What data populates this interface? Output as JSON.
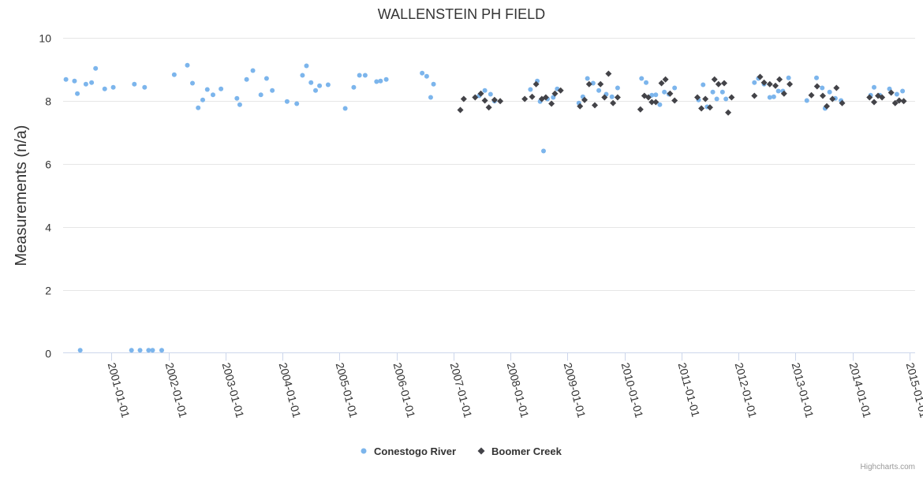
{
  "chart_data": {
    "type": "scatter",
    "title": "WALLENSTEIN PH FIELD",
    "xlabel": "",
    "ylabel": "Measurements (n/a)",
    "xlim": [
      2000.15,
      2015.1
    ],
    "ylim": [
      0,
      10
    ],
    "yticks": [
      0,
      2,
      4,
      6,
      8,
      10
    ],
    "xtick_labels": [
      "2001-01-01",
      "2002-01-01",
      "2003-01-01",
      "2004-01-01",
      "2005-01-01",
      "2006-01-01",
      "2007-01-01",
      "2008-01-01",
      "2009-01-01",
      "2010-01-01",
      "2011-01-01",
      "2012-01-01",
      "2013-01-01",
      "2014-01-01",
      "2015-01-01"
    ],
    "xtick_values": [
      2001,
      2002,
      2003,
      2004,
      2005,
      2006,
      2007,
      2008,
      2009,
      2010,
      2011,
      2012,
      2013,
      2014,
      2015
    ],
    "grid": true,
    "legend_position": "bottom-center",
    "series": [
      {
        "name": "Conestogo River",
        "color": "#7cb5ec",
        "marker": "circle",
        "points": [
          [
            2000.2,
            8.67
          ],
          [
            2000.35,
            8.62
          ],
          [
            2000.4,
            8.22
          ],
          [
            2000.45,
            0.08
          ],
          [
            2000.55,
            8.52
          ],
          [
            2000.65,
            8.57
          ],
          [
            2000.72,
            9.02
          ],
          [
            2000.88,
            8.37
          ],
          [
            2001.03,
            8.42
          ],
          [
            2001.35,
            0.08
          ],
          [
            2001.4,
            8.52
          ],
          [
            2001.5,
            0.08
          ],
          [
            2001.58,
            8.42
          ],
          [
            2001.65,
            0.08
          ],
          [
            2001.72,
            0.08
          ],
          [
            2001.88,
            0.08
          ],
          [
            2002.1,
            8.82
          ],
          [
            2002.33,
            9.12
          ],
          [
            2002.42,
            8.55
          ],
          [
            2002.52,
            7.77
          ],
          [
            2002.6,
            8.02
          ],
          [
            2002.68,
            8.35
          ],
          [
            2002.78,
            8.18
          ],
          [
            2002.92,
            8.37
          ],
          [
            2003.2,
            8.07
          ],
          [
            2003.25,
            7.87
          ],
          [
            2003.37,
            8.67
          ],
          [
            2003.48,
            8.95
          ],
          [
            2003.62,
            8.18
          ],
          [
            2003.72,
            8.7
          ],
          [
            2003.82,
            8.32
          ],
          [
            2004.08,
            7.97
          ],
          [
            2004.25,
            7.9
          ],
          [
            2004.35,
            8.8
          ],
          [
            2004.42,
            9.1
          ],
          [
            2004.5,
            8.57
          ],
          [
            2004.58,
            8.32
          ],
          [
            2004.65,
            8.47
          ],
          [
            2004.8,
            8.5
          ],
          [
            2005.1,
            7.75
          ],
          [
            2005.25,
            8.42
          ],
          [
            2005.35,
            8.8
          ],
          [
            2005.45,
            8.8
          ],
          [
            2005.65,
            8.6
          ],
          [
            2005.72,
            8.62
          ],
          [
            2005.82,
            8.67
          ],
          [
            2006.45,
            8.87
          ],
          [
            2006.53,
            8.77
          ],
          [
            2006.6,
            8.1
          ],
          [
            2006.65,
            8.52
          ],
          [
            2007.45,
            8.15
          ],
          [
            2007.55,
            8.32
          ],
          [
            2007.65,
            8.2
          ],
          [
            2007.72,
            7.98
          ],
          [
            2008.35,
            8.35
          ],
          [
            2008.47,
            8.62
          ],
          [
            2008.52,
            7.97
          ],
          [
            2008.58,
            6.4
          ],
          [
            2008.65,
            8.05
          ],
          [
            2008.75,
            8.1
          ],
          [
            2008.82,
            8.37
          ],
          [
            2009.2,
            7.92
          ],
          [
            2009.27,
            8.12
          ],
          [
            2009.35,
            8.7
          ],
          [
            2009.45,
            8.55
          ],
          [
            2009.55,
            8.32
          ],
          [
            2009.68,
            8.2
          ],
          [
            2009.78,
            8.12
          ],
          [
            2009.88,
            8.4
          ],
          [
            2010.3,
            8.7
          ],
          [
            2010.38,
            8.57
          ],
          [
            2010.48,
            8.17
          ],
          [
            2010.55,
            8.18
          ],
          [
            2010.62,
            7.87
          ],
          [
            2010.7,
            8.27
          ],
          [
            2010.78,
            8.2
          ],
          [
            2010.88,
            8.4
          ],
          [
            2011.3,
            8.02
          ],
          [
            2011.38,
            8.5
          ],
          [
            2011.45,
            7.8
          ],
          [
            2011.55,
            8.27
          ],
          [
            2011.62,
            8.05
          ],
          [
            2011.72,
            8.27
          ],
          [
            2011.78,
            8.05
          ],
          [
            2012.28,
            8.57
          ],
          [
            2012.35,
            8.7
          ],
          [
            2012.45,
            8.52
          ],
          [
            2012.55,
            8.1
          ],
          [
            2012.62,
            8.12
          ],
          [
            2012.7,
            8.3
          ],
          [
            2012.78,
            8.3
          ],
          [
            2012.88,
            8.72
          ],
          [
            2013.2,
            8.0
          ],
          [
            2013.37,
            8.72
          ],
          [
            2013.47,
            8.4
          ],
          [
            2013.52,
            7.75
          ],
          [
            2013.6,
            8.27
          ],
          [
            2013.7,
            8.07
          ],
          [
            2013.8,
            8.0
          ],
          [
            2014.32,
            8.17
          ],
          [
            2014.38,
            8.42
          ],
          [
            2014.48,
            8.17
          ],
          [
            2014.65,
            8.37
          ],
          [
            2014.78,
            8.2
          ],
          [
            2014.88,
            8.3
          ]
        ]
      },
      {
        "name": "Boomer Creek",
        "color": "#434348",
        "marker": "diamond",
        "points": [
          [
            2007.12,
            7.7
          ],
          [
            2007.18,
            8.05
          ],
          [
            2007.38,
            8.1
          ],
          [
            2007.48,
            8.22
          ],
          [
            2007.55,
            8.0
          ],
          [
            2007.62,
            7.78
          ],
          [
            2007.72,
            8.02
          ],
          [
            2007.82,
            7.98
          ],
          [
            2008.25,
            8.05
          ],
          [
            2008.38,
            8.12
          ],
          [
            2008.45,
            8.52
          ],
          [
            2008.55,
            8.05
          ],
          [
            2008.62,
            8.1
          ],
          [
            2008.72,
            7.9
          ],
          [
            2008.78,
            8.22
          ],
          [
            2008.88,
            8.32
          ],
          [
            2009.22,
            7.82
          ],
          [
            2009.3,
            8.02
          ],
          [
            2009.38,
            8.52
          ],
          [
            2009.48,
            7.85
          ],
          [
            2009.58,
            8.52
          ],
          [
            2009.65,
            8.1
          ],
          [
            2009.72,
            8.85
          ],
          [
            2009.8,
            7.92
          ],
          [
            2009.88,
            8.1
          ],
          [
            2010.28,
            7.72
          ],
          [
            2010.35,
            8.15
          ],
          [
            2010.42,
            8.1
          ],
          [
            2010.48,
            7.95
          ],
          [
            2010.55,
            7.95
          ],
          [
            2010.65,
            8.55
          ],
          [
            2010.72,
            8.67
          ],
          [
            2010.8,
            8.22
          ],
          [
            2010.88,
            8.0
          ],
          [
            2011.28,
            8.1
          ],
          [
            2011.35,
            7.75
          ],
          [
            2011.42,
            8.05
          ],
          [
            2011.5,
            7.78
          ],
          [
            2011.58,
            8.67
          ],
          [
            2011.65,
            8.52
          ],
          [
            2011.75,
            8.55
          ],
          [
            2011.82,
            7.62
          ],
          [
            2011.88,
            8.1
          ],
          [
            2012.28,
            8.15
          ],
          [
            2012.38,
            8.75
          ],
          [
            2012.45,
            8.57
          ],
          [
            2012.55,
            8.52
          ],
          [
            2012.65,
            8.47
          ],
          [
            2012.72,
            8.67
          ],
          [
            2012.8,
            8.22
          ],
          [
            2012.9,
            8.52
          ],
          [
            2013.28,
            8.17
          ],
          [
            2013.38,
            8.45
          ],
          [
            2013.48,
            8.15
          ],
          [
            2013.55,
            7.82
          ],
          [
            2013.65,
            8.05
          ],
          [
            2013.72,
            8.4
          ],
          [
            2013.82,
            7.92
          ],
          [
            2014.3,
            8.1
          ],
          [
            2014.38,
            7.95
          ],
          [
            2014.45,
            8.15
          ],
          [
            2014.52,
            8.1
          ],
          [
            2014.68,
            8.25
          ],
          [
            2014.75,
            7.92
          ],
          [
            2014.82,
            8.0
          ],
          [
            2014.9,
            7.98
          ]
        ]
      }
    ],
    "credits": "Highcharts.com"
  }
}
